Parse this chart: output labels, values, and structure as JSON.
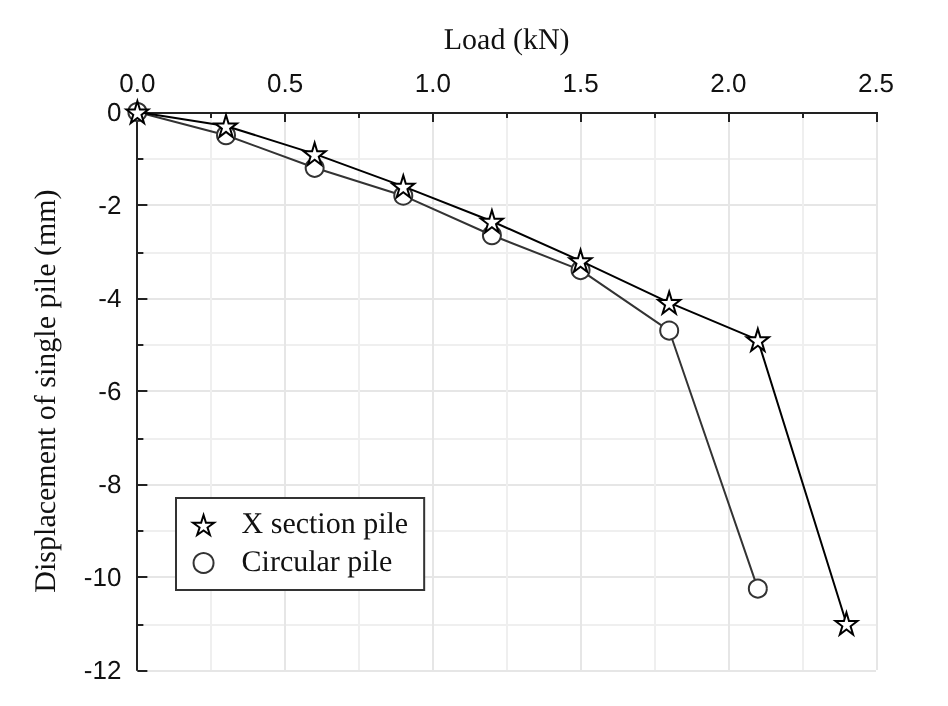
{
  "chart_data": {
    "type": "line",
    "xlabel": "Load (kN)",
    "ylabel": "Displacement of single pile (mm)",
    "xlim": [
      0,
      2.5
    ],
    "xticks": [
      {
        "value": 0,
        "label": "0.0"
      },
      {
        "value": 0.5,
        "label": "0.5"
      },
      {
        "value": 1,
        "label": "1.0"
      },
      {
        "value": 1.5,
        "label": "1.5"
      },
      {
        "value": 2,
        "label": "2.0"
      },
      {
        "value": 2.5,
        "label": "2.5"
      }
    ],
    "ylim": [
      -12,
      0
    ],
    "yticks": [
      0,
      -2,
      -4,
      -6,
      -8,
      -10,
      -12
    ],
    "grid": true,
    "legend": "bottom left",
    "series": [
      {
        "name": "X section pile",
        "color": "#000000",
        "marker": "star",
        "x": [
          0,
          0.3,
          0.6,
          0.9,
          1.2,
          1.5,
          1.8,
          2.1,
          2.4
        ],
        "values": [
          0,
          -0.3,
          -0.9,
          -1.6,
          -2.35,
          -3.2,
          -4.1,
          -4.9,
          -11.0
        ]
      },
      {
        "name": "Circular pile",
        "color": "#333333",
        "marker": "circle",
        "x": [
          0,
          0.3,
          0.6,
          0.9,
          1.2,
          1.5,
          1.8,
          2.1
        ],
        "values": [
          0,
          -0.5,
          -1.2,
          -1.8,
          -2.65,
          -3.4,
          -4.7,
          -10.25
        ]
      }
    ]
  }
}
